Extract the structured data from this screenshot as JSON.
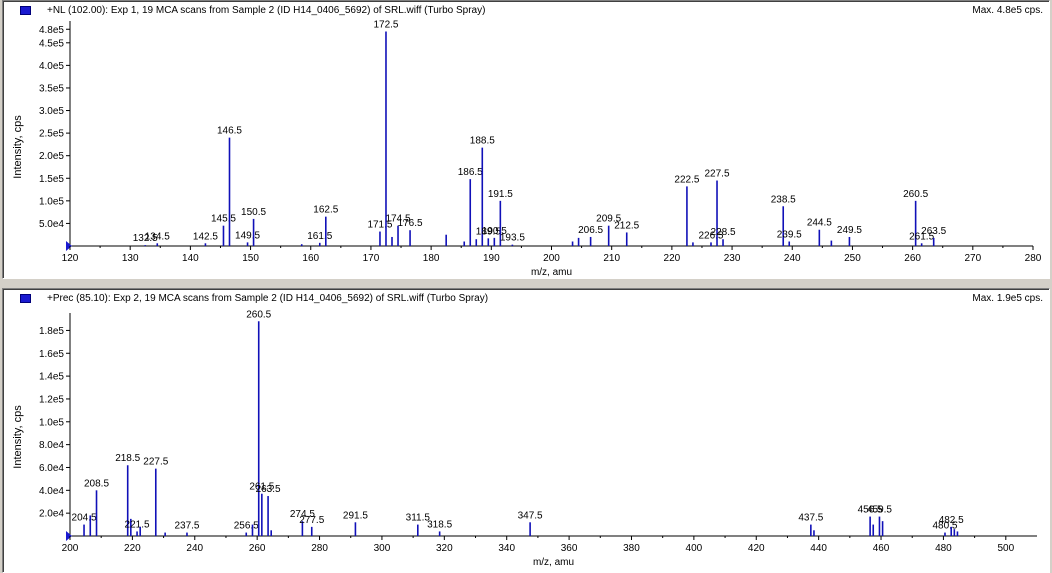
{
  "chart_data": [
    {
      "type": "bar",
      "header": "+NL (102.00): Exp 1, 19 MCA scans from Sample 2 (ID H14_0406_5692) of SRL.wiff (Turbo Spray)",
      "max_label": "Max. 4.8e5 cps.",
      "xlabel": "m/z, amu",
      "ylabel": "Intensity, cps",
      "xlim": [
        120,
        280
      ],
      "ylim": [
        0,
        485000
      ],
      "x_ticks": [
        "120",
        "130",
        "140",
        "150",
        "160",
        "170",
        "180",
        "190",
        "200",
        "210",
        "220",
        "230",
        "240",
        "250",
        "260",
        "270",
        "280"
      ],
      "y_ticks": [
        "5.0e4",
        "1.0e5",
        "1.5e5",
        "2.0e5",
        "2.5e5",
        "3.0e5",
        "3.5e5",
        "4.0e5",
        "4.5e5",
        "4.8e5"
      ],
      "peaks": [
        {
          "x": 132.5,
          "y": 2000,
          "label": "132.5"
        },
        {
          "x": 134.5,
          "y": 6000,
          "label": "134.5"
        },
        {
          "x": 142.5,
          "y": 6000,
          "label": "142.5"
        },
        {
          "x": 145.5,
          "y": 45000,
          "label": "145.5"
        },
        {
          "x": 146.5,
          "y": 240000,
          "label": "146.5"
        },
        {
          "x": 149.5,
          "y": 8000,
          "label": "149.5"
        },
        {
          "x": 150.5,
          "y": 60000,
          "label": "150.5"
        },
        {
          "x": 158.5,
          "y": 4000,
          "label": ""
        },
        {
          "x": 161.5,
          "y": 7000,
          "label": "161.5"
        },
        {
          "x": 162.5,
          "y": 65000,
          "label": "162.5"
        },
        {
          "x": 171.5,
          "y": 32000,
          "label": "171.5"
        },
        {
          "x": 172.5,
          "y": 475000,
          "label": "172.5"
        },
        {
          "x": 173.5,
          "y": 20000,
          "label": ""
        },
        {
          "x": 174.5,
          "y": 45000,
          "label": "174.5"
        },
        {
          "x": 176.5,
          "y": 35000,
          "label": "176.5"
        },
        {
          "x": 182.5,
          "y": 25000,
          "label": ""
        },
        {
          "x": 185.5,
          "y": 10000,
          "label": ""
        },
        {
          "x": 186.5,
          "y": 148000,
          "label": "186.5"
        },
        {
          "x": 187.5,
          "y": 15000,
          "label": ""
        },
        {
          "x": 188.5,
          "y": 218000,
          "label": "188.5"
        },
        {
          "x": 189.5,
          "y": 17000,
          "label": "189.5"
        },
        {
          "x": 190.5,
          "y": 18000,
          "label": "190.5"
        },
        {
          "x": 191.5,
          "y": 100000,
          "label": "191.5"
        },
        {
          "x": 193.5,
          "y": 3000,
          "label": "193.5"
        },
        {
          "x": 203.5,
          "y": 10000,
          "label": ""
        },
        {
          "x": 204.5,
          "y": 18000,
          "label": ""
        },
        {
          "x": 206.5,
          "y": 20000,
          "label": "206.5"
        },
        {
          "x": 209.5,
          "y": 45000,
          "label": "209.5"
        },
        {
          "x": 212.5,
          "y": 30000,
          "label": "212.5"
        },
        {
          "x": 222.5,
          "y": 132000,
          "label": "222.5"
        },
        {
          "x": 223.5,
          "y": 8000,
          "label": ""
        },
        {
          "x": 226.5,
          "y": 8000,
          "label": "226.5"
        },
        {
          "x": 227.5,
          "y": 145000,
          "label": "227.5"
        },
        {
          "x": 228.5,
          "y": 15000,
          "label": "228.5"
        },
        {
          "x": 238.5,
          "y": 88000,
          "label": "238.5"
        },
        {
          "x": 239.5,
          "y": 10000,
          "label": "239.5"
        },
        {
          "x": 244.5,
          "y": 36000,
          "label": "244.5"
        },
        {
          "x": 246.5,
          "y": 12000,
          "label": ""
        },
        {
          "x": 249.5,
          "y": 20000,
          "label": "249.5"
        },
        {
          "x": 260.5,
          "y": 100000,
          "label": "260.5"
        },
        {
          "x": 261.5,
          "y": 6000,
          "label": "261.5"
        },
        {
          "x": 263.5,
          "y": 18000,
          "label": "263.5"
        }
      ]
    },
    {
      "type": "bar",
      "header": "+Prec (85.10): Exp 2, 19 MCA scans from Sample 2 (ID H14_0406_5692) of SRL.wiff (Turbo Spray)",
      "max_label": "Max. 1.9e5 cps.",
      "xlabel": "m/z, amu",
      "ylabel": "Intensity, cps",
      "xlim": [
        200,
        510
      ],
      "ylim": [
        0,
        190000
      ],
      "x_ticks": [
        "200",
        "220",
        "240",
        "260",
        "280",
        "300",
        "320",
        "340",
        "360",
        "380",
        "400",
        "420",
        "440",
        "460",
        "480",
        "500"
      ],
      "y_ticks": [
        "2.0e4",
        "4.0e4",
        "6.0e4",
        "8.0e4",
        "1.0e5",
        "1.2e5",
        "1.4e5",
        "1.6e5",
        "1.8e5"
      ],
      "peaks": [
        {
          "x": 204.5,
          "y": 10000,
          "label": "204.5"
        },
        {
          "x": 206.5,
          "y": 18000,
          "label": ""
        },
        {
          "x": 208.5,
          "y": 40000,
          "label": "208.5"
        },
        {
          "x": 218.5,
          "y": 62000,
          "label": "218.5"
        },
        {
          "x": 219.5,
          "y": 15000,
          "label": ""
        },
        {
          "x": 221.5,
          "y": 4000,
          "label": "221.5"
        },
        {
          "x": 222.5,
          "y": 8000,
          "label": ""
        },
        {
          "x": 227.5,
          "y": 59000,
          "label": "227.5"
        },
        {
          "x": 230.5,
          "y": 3000,
          "label": ""
        },
        {
          "x": 237.5,
          "y": 3000,
          "label": "237.5"
        },
        {
          "x": 256.5,
          "y": 3000,
          "label": "256.5"
        },
        {
          "x": 258.5,
          "y": 10000,
          "label": ""
        },
        {
          "x": 260.5,
          "y": 188000,
          "label": "260.5"
        },
        {
          "x": 261.5,
          "y": 37000,
          "label": "261.5"
        },
        {
          "x": 263.5,
          "y": 35000,
          "label": "263.5"
        },
        {
          "x": 264.5,
          "y": 5000,
          "label": ""
        },
        {
          "x": 274.5,
          "y": 13000,
          "label": "274.5"
        },
        {
          "x": 277.5,
          "y": 8000,
          "label": "277.5"
        },
        {
          "x": 291.5,
          "y": 12000,
          "label": "291.5"
        },
        {
          "x": 311.5,
          "y": 10000,
          "label": "311.5"
        },
        {
          "x": 318.5,
          "y": 4000,
          "label": "318.5"
        },
        {
          "x": 347.5,
          "y": 12000,
          "label": "347.5"
        },
        {
          "x": 437.5,
          "y": 10000,
          "label": "437.5"
        },
        {
          "x": 438.5,
          "y": 5000,
          "label": ""
        },
        {
          "x": 456.5,
          "y": 17000,
          "label": "456.5"
        },
        {
          "x": 457.5,
          "y": 10000,
          "label": ""
        },
        {
          "x": 459.5,
          "y": 17000,
          "label": "459.5"
        },
        {
          "x": 460.5,
          "y": 13000,
          "label": ""
        },
        {
          "x": 480.5,
          "y": 3000,
          "label": "480.5"
        },
        {
          "x": 482.5,
          "y": 8000,
          "label": "482.5"
        },
        {
          "x": 483.5,
          "y": 6000,
          "label": ""
        },
        {
          "x": 484.5,
          "y": 4000,
          "label": ""
        }
      ]
    }
  ]
}
